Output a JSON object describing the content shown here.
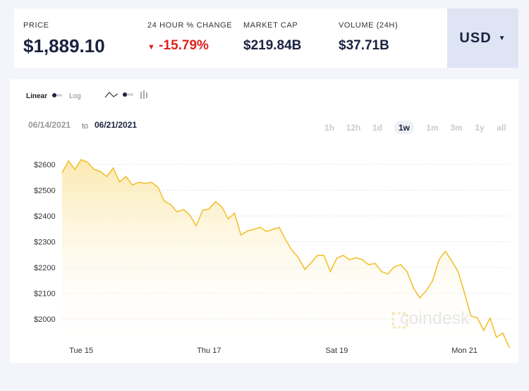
{
  "header": {
    "price_label": "PRICE",
    "price": "$1,889.10",
    "change_label": "24 HOUR % CHANGE",
    "change": "-15.79%",
    "market_cap_label": "MARKET CAP",
    "market_cap": "$219.84B",
    "volume_label": "VOLUME (24H)",
    "volume": "$37.71B",
    "currency": "USD"
  },
  "controls": {
    "scale_options": [
      "Linear",
      "Log"
    ],
    "date_from": "06/14/2021",
    "date_sep": "to",
    "date_to": "06/21/2021",
    "ranges": [
      "1h",
      "12h",
      "1d",
      "1w",
      "1m",
      "3m",
      "1y",
      "all"
    ],
    "selected_range": "1w"
  },
  "watermark": "coindesk",
  "chart_data": {
    "type": "area",
    "color": "#f2c12e",
    "categories": [
      null,
      null,
      null,
      "Tue 15",
      null,
      null,
      null,
      null,
      null,
      null,
      null,
      null,
      null,
      null,
      null,
      null,
      null,
      null,
      null,
      null,
      null,
      null,
      null,
      "Thu 17",
      null,
      null,
      null,
      null,
      null,
      null,
      null,
      null,
      null,
      null,
      null,
      null,
      null,
      null,
      null,
      null,
      null,
      null,
      null,
      "Sat 19",
      null,
      null,
      null,
      null,
      null,
      null,
      null,
      null,
      null,
      null,
      null,
      null,
      null,
      null,
      null,
      null,
      null,
      null,
      null,
      "Mon 21",
      null,
      null,
      null,
      null,
      null,
      null,
      null
    ],
    "values": [
      2567,
      2614,
      2581,
      2619,
      2608,
      2581,
      2573,
      2553,
      2586,
      2532,
      2553,
      2520,
      2531,
      2526,
      2531,
      2512,
      2458,
      2444,
      2416,
      2425,
      2403,
      2362,
      2422,
      2427,
      2455,
      2436,
      2389,
      2411,
      2326,
      2342,
      2348,
      2356,
      2340,
      2348,
      2356,
      2307,
      2266,
      2238,
      2192,
      2219,
      2247,
      2247,
      2184,
      2236,
      2247,
      2230,
      2238,
      2230,
      2211,
      2216,
      2184,
      2175,
      2203,
      2211,
      2184,
      2121,
      2082,
      2110,
      2148,
      2230,
      2263,
      2225,
      2184,
      2101,
      2011,
      2005,
      1956,
      2003,
      1929,
      1945,
      1889
    ],
    "ylim": [
      1885,
      2665
    ],
    "yticks": [
      {
        "value": 2000,
        "label": "$2000"
      },
      {
        "value": 2100,
        "label": "$2100"
      },
      {
        "value": 2200,
        "label": "$2200"
      },
      {
        "value": 2300,
        "label": "$2300"
      },
      {
        "value": 2400,
        "label": "$2400"
      },
      {
        "value": 2500,
        "label": "$2500"
      },
      {
        "value": 2600,
        "label": "$2600"
      }
    ],
    "grid": true
  }
}
